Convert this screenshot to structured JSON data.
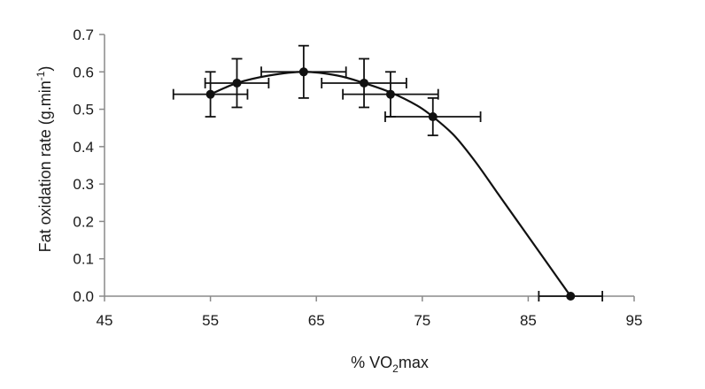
{
  "chart_data": {
    "type": "scatter",
    "title": "",
    "xlabel": {
      "prefix": "% VO",
      "sub": "2",
      "suffix": "max"
    },
    "ylabel": {
      "prefix": "Fat oxidation rate (g.min",
      "sup": "-1",
      "suffix": ")"
    },
    "xlim": [
      45,
      95
    ],
    "ylim": [
      0,
      0.7
    ],
    "xticks": [
      "45",
      "55",
      "65",
      "75",
      "85",
      "95"
    ],
    "yticks": [
      "0.0",
      "0.1",
      "0.2",
      "0.3",
      "0.4",
      "0.5",
      "0.6",
      "0.7"
    ],
    "grid": false,
    "legend": "none",
    "series": [
      {
        "points": [
          {
            "x": 55.0,
            "y": 0.54,
            "xerr": 3.5,
            "yerr": 0.06
          },
          {
            "x": 57.5,
            "y": 0.57,
            "xerr": 3.0,
            "yerr": 0.065
          },
          {
            "x": 63.8,
            "y": 0.6,
            "xerr": 4.0,
            "yerr": 0.07
          },
          {
            "x": 69.5,
            "y": 0.57,
            "xerr": 4.0,
            "yerr": 0.065
          },
          {
            "x": 72.0,
            "y": 0.54,
            "xerr": 4.5,
            "yerr": 0.06
          },
          {
            "x": 76.0,
            "y": 0.48,
            "xerr": 4.5,
            "yerr": 0.05
          },
          {
            "x": 89.0,
            "y": 0.0,
            "xerr": 3.0,
            "yerr": 0.0
          }
        ],
        "fit_curve": [
          [
            55.0,
            0.54
          ],
          [
            57.5,
            0.57
          ],
          [
            60.5,
            0.59
          ],
          [
            63.8,
            0.6
          ],
          [
            67.0,
            0.59
          ],
          [
            69.5,
            0.57
          ],
          [
            72.0,
            0.545
          ],
          [
            74.5,
            0.51
          ],
          [
            76.0,
            0.48
          ],
          [
            78.0,
            0.43
          ],
          [
            80.0,
            0.36
          ],
          [
            82.0,
            0.28
          ],
          [
            84.0,
            0.2
          ],
          [
            86.0,
            0.12
          ],
          [
            88.0,
            0.04
          ],
          [
            89.0,
            0.0
          ]
        ],
        "color": "#111111"
      }
    ]
  }
}
